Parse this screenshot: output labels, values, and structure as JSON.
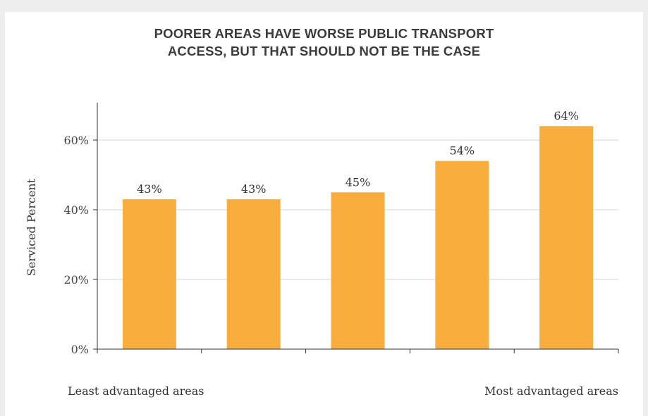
{
  "chart_data": {
    "type": "bar",
    "title_lines": [
      "POORER AREAS HAVE WORSE PUBLIC TRANSPORT",
      "ACCESS, BUT THAT SHOULD NOT BE THE CASE"
    ],
    "ylabel": "Serviced Percent",
    "categories": [
      "",
      "",
      "",
      "",
      ""
    ],
    "values": [
      43,
      43,
      45,
      54,
      64
    ],
    "value_labels": [
      "43%",
      "43%",
      "45%",
      "54%",
      "64%"
    ],
    "y_ticks": [
      0,
      20,
      40,
      60
    ],
    "y_tick_labels": [
      "0%",
      "20%",
      "40%",
      "60%"
    ],
    "ylim": [
      0,
      70
    ],
    "grid": true,
    "x_end_labels": {
      "left": "Least advantaged areas",
      "right": "Most advantaged areas"
    },
    "colors": {
      "bar": "#f9ad3c",
      "grid": "#d6d6d6",
      "axis": "#333333"
    }
  }
}
